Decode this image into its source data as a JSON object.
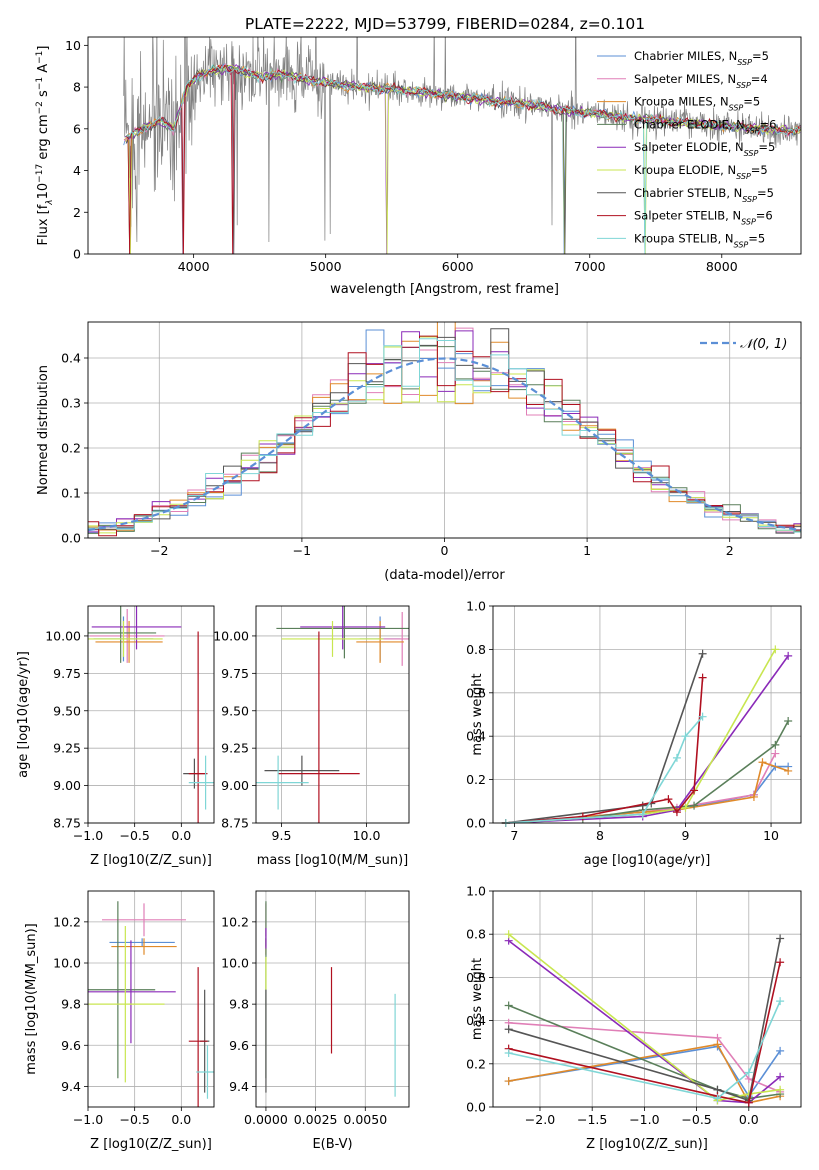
{
  "figure_title": "PLATE=2222, MJD=53799, FIBERID=0284, z=0.101",
  "legend_entries": [
    {
      "model": "Chabrier MILES",
      "n_ssp": "5",
      "color": "#5b8fd6"
    },
    {
      "model": "Salpeter MILES",
      "n_ssp": "4",
      "color": "#e07fb7"
    },
    {
      "model": "Kroupa MILES",
      "n_ssp": "5",
      "color": "#e08a2a"
    },
    {
      "model": "Chabrier ELODIE",
      "n_ssp": "6",
      "color": "#5a7f5a"
    },
    {
      "model": "Salpeter ELODIE",
      "n_ssp": "5",
      "color": "#8a2ab8"
    },
    {
      "model": "Kroupa ELODIE",
      "n_ssp": "5",
      "color": "#c8e650"
    },
    {
      "model": "Chabrier STELIB",
      "n_ssp": "5",
      "color": "#555555"
    },
    {
      "model": "Salpeter STELIB",
      "n_ssp": "6",
      "color": "#b01020"
    },
    {
      "model": "Kroupa STELIB",
      "n_ssp": "5",
      "color": "#7fd6d6"
    }
  ],
  "chart_data": [
    {
      "id": "spectrum",
      "type": "line",
      "xlabel": "wavelength [Angstrom, rest frame]",
      "ylabel": "Flux [f_λ 10^-17 erg cm^-2 s^-1 A^-1]",
      "xlim": [
        3200,
        8600
      ],
      "ylim": [
        0,
        10.4
      ],
      "xticks": [
        4000,
        5000,
        6000,
        7000,
        8000
      ],
      "yticks": [
        0,
        2,
        4,
        6,
        8,
        10
      ],
      "data_color": "#808080",
      "continuum": {
        "x": [
          3450,
          3550,
          3650,
          3750,
          3850,
          3950,
          4050,
          4150,
          4300,
          4500,
          4700,
          4900,
          5100,
          5300,
          5500,
          5700,
          5900,
          6100,
          6300,
          6500,
          6700,
          6900,
          7100,
          7300,
          7500,
          7700,
          7900,
          8100,
          8300,
          8500,
          8600
        ],
        "y": [
          5.3,
          5.8,
          6.1,
          6.4,
          6.0,
          8.0,
          8.6,
          8.8,
          8.9,
          8.5,
          8.6,
          8.3,
          8.1,
          8.0,
          7.9,
          7.8,
          7.6,
          7.5,
          7.3,
          7.2,
          7.0,
          6.8,
          6.7,
          6.5,
          6.4,
          6.3,
          6.2,
          6.1,
          6.0,
          5.9,
          5.9
        ]
      },
      "grid": false
    },
    {
      "id": "residuals",
      "type": "histogram",
      "xlabel": "(data-model)/error",
      "ylabel": "Normed distribution",
      "xlim": [
        -2.5,
        2.5
      ],
      "ylim": [
        0,
        0.48
      ],
      "xticks": [
        -2,
        -1,
        0,
        1,
        2
      ],
      "yticks": [
        0.0,
        0.1,
        0.2,
        0.3,
        0.4
      ],
      "bin_width": 0.125,
      "reference_label": "N(0,1)",
      "reference_color": "#5b8fd6",
      "grid": true
    },
    {
      "id": "age_vs_Z",
      "type": "errorbar",
      "xlabel": "Z [log10(Z/Z_sun)]",
      "ylabel": "age [log10(age/yr)]",
      "xlim": [
        -1.0,
        0.35
      ],
      "ylim": [
        8.75,
        10.2
      ],
      "xticks": [
        -1.0,
        -0.5,
        0.0
      ],
      "yticks": [
        8.75,
        9.0,
        9.25,
        9.5,
        9.75,
        10.0
      ],
      "points": [
        {
          "x": -0.62,
          "y": 9.98,
          "xerr": 0.32,
          "yerr": 0.15,
          "c": 0
        },
        {
          "x": -0.58,
          "y": 10.0,
          "xerr": 0.4,
          "yerr": 0.18,
          "c": 1
        },
        {
          "x": -0.56,
          "y": 9.96,
          "xerr": 0.36,
          "yerr": 0.14,
          "c": 2
        },
        {
          "x": -0.65,
          "y": 10.02,
          "xerr": 0.38,
          "yerr": 0.2,
          "c": 3
        },
        {
          "x": -0.48,
          "y": 10.06,
          "xerr": 0.48,
          "yerr": 0.15,
          "c": 4
        },
        {
          "x": -0.62,
          "y": 9.98,
          "xerr": 0.42,
          "yerr": 0.12,
          "c": 5
        },
        {
          "x": 0.14,
          "y": 9.08,
          "xerr": 0.12,
          "yerr": 0.1,
          "c": 6
        },
        {
          "x": 0.18,
          "y": 9.08,
          "xerr": 0.1,
          "yerr": 0.95,
          "c": 7
        },
        {
          "x": 0.26,
          "y": 9.02,
          "xerr": 0.18,
          "yerr": 0.18,
          "c": 8
        }
      ],
      "grid": true
    },
    {
      "id": "age_vs_mass",
      "type": "errorbar",
      "xlabel": "mass [log10(M/M_sun)]",
      "ylabel": "",
      "xlim": [
        9.35,
        10.25
      ],
      "ylim": [
        8.75,
        10.2
      ],
      "xticks": [
        9.5,
        10.0
      ],
      "yticks": [
        8.75,
        9.0,
        9.25,
        9.5,
        9.75,
        10.0
      ],
      "points": [
        {
          "x": 10.08,
          "y": 9.98,
          "xerr": 0.12,
          "yerr": 0.15,
          "c": 0
        },
        {
          "x": 10.21,
          "y": 9.98,
          "xerr": 0.14,
          "yerr": 0.18,
          "c": 1
        },
        {
          "x": 10.08,
          "y": 9.96,
          "xerr": 0.14,
          "yerr": 0.14,
          "c": 2
        },
        {
          "x": 9.87,
          "y": 10.05,
          "xerr": 0.4,
          "yerr": 0.2,
          "c": 3
        },
        {
          "x": 9.86,
          "y": 10.06,
          "xerr": 0.25,
          "yerr": 0.15,
          "c": 4
        },
        {
          "x": 9.8,
          "y": 9.98,
          "xerr": 0.3,
          "yerr": 0.12,
          "c": 5
        },
        {
          "x": 9.62,
          "y": 9.1,
          "xerr": 0.22,
          "yerr": 0.1,
          "c": 6
        },
        {
          "x": 9.72,
          "y": 9.08,
          "xerr": 0.24,
          "yerr": 0.95,
          "c": 7
        },
        {
          "x": 9.48,
          "y": 9.02,
          "xerr": 0.18,
          "yerr": 0.18,
          "c": 8
        }
      ],
      "grid": true
    },
    {
      "id": "weight_vs_age",
      "type": "line",
      "xlabel": "age [log10(age/yr)]",
      "ylabel": "mass weight",
      "xlim": [
        6.75,
        10.35
      ],
      "ylim": [
        0.0,
        1.0
      ],
      "xticks": [
        7,
        8,
        9,
        10
      ],
      "yticks": [
        0.0,
        0.2,
        0.4,
        0.6,
        0.8,
        1.0
      ],
      "series": [
        {
          "c": 0,
          "x": [
            6.9,
            8.5,
            8.9,
            9.8,
            10.05,
            10.2
          ],
          "y": [
            0.0,
            0.05,
            0.06,
            0.13,
            0.26,
            0.26
          ]
        },
        {
          "c": 1,
          "x": [
            6.9,
            8.5,
            8.9,
            9.8,
            10.05
          ],
          "y": [
            0.0,
            0.05,
            0.07,
            0.13,
            0.32
          ]
        },
        {
          "c": 2,
          "x": [
            6.9,
            8.5,
            8.9,
            9.8,
            9.9,
            10.2
          ],
          "y": [
            0.0,
            0.05,
            0.06,
            0.12,
            0.28,
            0.24
          ]
        },
        {
          "c": 3,
          "x": [
            6.9,
            7.8,
            8.5,
            9.1,
            10.05,
            10.2
          ],
          "y": [
            0.0,
            0.02,
            0.06,
            0.08,
            0.36,
            0.47
          ]
        },
        {
          "c": 4,
          "x": [
            6.9,
            8.5,
            8.9,
            10.2
          ],
          "y": [
            0.0,
            0.03,
            0.06,
            0.77
          ]
        },
        {
          "c": 5,
          "x": [
            6.9,
            8.5,
            9.0,
            10.05
          ],
          "y": [
            0.0,
            0.04,
            0.07,
            0.8
          ]
        },
        {
          "c": 6,
          "x": [
            6.9,
            8.5,
            8.6,
            9.2
          ],
          "y": [
            0.0,
            0.08,
            0.09,
            0.78
          ]
        },
        {
          "c": 7,
          "x": [
            6.9,
            7.8,
            8.8,
            8.9,
            9.1,
            9.2
          ],
          "y": [
            0.0,
            0.03,
            0.11,
            0.05,
            0.15,
            0.67
          ]
        },
        {
          "c": 8,
          "x": [
            6.9,
            8.5,
            8.9,
            9.0,
            9.2
          ],
          "y": [
            0.0,
            0.04,
            0.3,
            0.4,
            0.49
          ]
        }
      ],
      "grid": true
    },
    {
      "id": "mass_vs_Z",
      "type": "errorbar",
      "xlabel": "Z [log10(Z/Z_sun)]",
      "ylabel": "mass [log10(M/M_sun)]",
      "xlim": [
        -1.0,
        0.35
      ],
      "ylim": [
        9.3,
        10.35
      ],
      "xticks": [
        -1.0,
        -0.5,
        0.0
      ],
      "yticks": [
        9.4,
        9.6,
        9.8,
        10.0,
        10.2
      ],
      "points": [
        {
          "x": -0.42,
          "y": 10.1,
          "xerr": 0.35,
          "yerr": 0.02,
          "c": 0
        },
        {
          "x": -0.4,
          "y": 10.21,
          "xerr": 0.45,
          "yerr": 0.08,
          "c": 1
        },
        {
          "x": -0.4,
          "y": 10.08,
          "xerr": 0.35,
          "yerr": 0.04,
          "c": 2
        },
        {
          "x": -0.68,
          "y": 9.87,
          "xerr": 0.4,
          "yerr": 0.43,
          "c": 3
        },
        {
          "x": -0.54,
          "y": 9.86,
          "xerr": 0.48,
          "yerr": 0.25,
          "c": 4
        },
        {
          "x": -0.6,
          "y": 9.8,
          "xerr": 0.42,
          "yerr": 0.38,
          "c": 5
        },
        {
          "x": 0.25,
          "y": 9.62,
          "xerr": 0.05,
          "yerr": 0.25,
          "c": 6
        },
        {
          "x": 0.18,
          "y": 9.62,
          "xerr": 0.1,
          "yerr": 0.36,
          "c": 7
        },
        {
          "x": 0.28,
          "y": 9.47,
          "xerr": 0.12,
          "yerr": 0.13,
          "c": 8
        }
      ],
      "grid": true
    },
    {
      "id": "mass_vs_ebv",
      "type": "errorbar",
      "xlabel": "E(B-V)",
      "ylabel": "",
      "xlim": [
        -0.0005,
        0.0072
      ],
      "ylim": [
        9.3,
        10.35
      ],
      "xticks": [
        0.0,
        0.0025,
        0.005
      ],
      "xticklabels": [
        "0.0000",
        "0.0025",
        "0.0050"
      ],
      "yticks": [
        9.4,
        9.6,
        9.8,
        10.0,
        10.2
      ],
      "points": [
        {
          "x": 0.0,
          "y": 10.1,
          "xerr": 0,
          "yerr": 0.02,
          "c": 0
        },
        {
          "x": 0.0,
          "y": 10.21,
          "xerr": 0,
          "yerr": 0.08,
          "c": 1
        },
        {
          "x": 0.0,
          "y": 10.08,
          "xerr": 0,
          "yerr": 0.04,
          "c": 2
        },
        {
          "x": 0.0,
          "y": 9.87,
          "xerr": 0,
          "yerr": 0.43,
          "c": 3
        },
        {
          "x": 0.0,
          "y": 10.12,
          "xerr": 0,
          "yerr": 0.05,
          "c": 4
        },
        {
          "x": 0.0,
          "y": 9.95,
          "xerr": 0,
          "yerr": 0.08,
          "c": 5
        },
        {
          "x": 0.0,
          "y": 9.62,
          "xerr": 0,
          "yerr": 0.25,
          "c": 6
        },
        {
          "x": 0.0033,
          "y": 9.77,
          "xerr": 0,
          "yerr": 0.21,
          "c": 7
        },
        {
          "x": 0.0065,
          "y": 9.6,
          "xerr": 0,
          "yerr": 0.25,
          "c": 8
        }
      ],
      "grid": true
    },
    {
      "id": "weight_vs_Z",
      "type": "line",
      "xlabel": "Z [log10(Z/Z_sun)]",
      "ylabel": "mass weight",
      "xlim": [
        -2.45,
        0.5
      ],
      "ylim": [
        0.0,
        1.0
      ],
      "xticks": [
        -2.0,
        -1.5,
        -1.0,
        -0.5,
        0.0
      ],
      "yticks": [
        0.0,
        0.2,
        0.4,
        0.6,
        0.8,
        1.0
      ],
      "series": [
        {
          "c": 0,
          "x": [
            -2.3,
            -0.3,
            0.0,
            0.3
          ],
          "y": [
            0.12,
            0.28,
            0.05,
            0.26
          ]
        },
        {
          "c": 1,
          "x": [
            -2.3,
            -0.3,
            0.0,
            0.3
          ],
          "y": [
            0.39,
            0.32,
            0.13,
            0.07
          ]
        },
        {
          "c": 2,
          "x": [
            -2.3,
            -0.3,
            0.0,
            0.3
          ],
          "y": [
            0.12,
            0.29,
            0.02,
            0.05
          ]
        },
        {
          "c": 3,
          "x": [
            -2.3,
            -0.3,
            0.0,
            0.3
          ],
          "y": [
            0.47,
            0.08,
            0.04,
            0.06
          ]
        },
        {
          "c": 4,
          "x": [
            -2.3,
            -0.3,
            0.0,
            0.3
          ],
          "y": [
            0.77,
            0.03,
            0.02,
            0.14
          ]
        },
        {
          "c": 5,
          "x": [
            -2.3,
            -0.3,
            0.0,
            0.3
          ],
          "y": [
            0.8,
            0.03,
            0.06,
            0.08
          ]
        },
        {
          "c": 6,
          "x": [
            -2.3,
            -0.3,
            0.0,
            0.3
          ],
          "y": [
            0.36,
            0.08,
            0.03,
            0.78
          ]
        },
        {
          "c": 7,
          "x": [
            -2.3,
            -0.3,
            0.0,
            0.3
          ],
          "y": [
            0.27,
            0.05,
            0.02,
            0.67
          ]
        },
        {
          "c": 8,
          "x": [
            -2.3,
            -0.3,
            0.0,
            0.3
          ],
          "y": [
            0.25,
            0.04,
            0.16,
            0.49
          ]
        }
      ],
      "grid": true
    }
  ]
}
